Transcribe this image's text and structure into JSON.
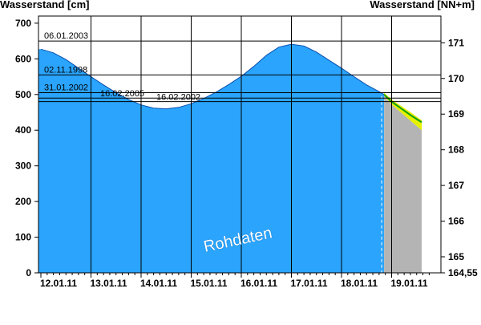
{
  "header": {
    "left_axis_title": "Wasserstand [cm]",
    "right_axis_title": "Wasserstand [NN+m]"
  },
  "watermark": "Rohdaten",
  "colors": {
    "area": "#2aa4fc",
    "forecast_area": "#b4b4b4",
    "forecast_band": "#e6f000",
    "forecast_line": "#10a010",
    "gridline": "#000000"
  },
  "chart_data": {
    "type": "area",
    "title": "",
    "xlabel": "",
    "ylabel": "Wasserstand [cm]",
    "y2label": "Wasserstand [NN+m]",
    "x_ticks": [
      "12.01.11",
      "13.01.11",
      "14.01.11",
      "15.01.11",
      "16.01.11",
      "17.01.11",
      "18.01.11",
      "19.01.11"
    ],
    "xlim_days": [
      -0.05,
      7.75
    ],
    "ylim": [
      0,
      720
    ],
    "y_ticks": [
      0,
      100,
      200,
      300,
      400,
      500,
      600,
      700
    ],
    "y2_ticks": [
      164.55,
      165,
      166,
      167,
      168,
      169,
      170,
      171
    ],
    "y2_tick_labels": [
      "164,55",
      "165",
      "166",
      "167",
      "168",
      "169",
      "170",
      "171"
    ],
    "y2_offset_m": 164.55,
    "series": [
      {
        "kind": "observed",
        "x_days": [
          0.0,
          0.25,
          0.5,
          0.75,
          1.0,
          1.25,
          1.5,
          1.75,
          2.0,
          2.25,
          2.5,
          2.75,
          3.0,
          3.25,
          3.5,
          3.75,
          4.0,
          4.25,
          4.5,
          4.75,
          5.0,
          5.25,
          5.5,
          5.75,
          6.0,
          6.25,
          6.5,
          6.75,
          6.85
        ],
        "values": [
          627,
          617,
          598,
          574,
          550,
          527,
          505,
          486,
          471,
          462,
          460,
          464,
          474,
          489,
          507,
          528,
          551,
          579,
          610,
          633,
          641,
          636,
          619,
          596,
          574,
          550,
          527,
          508,
          500
        ]
      },
      {
        "kind": "forecast",
        "x_days": [
          6.85,
          7.0,
          7.2,
          7.4,
          7.6
        ],
        "values": [
          500,
          480,
          460,
          440,
          422
        ],
        "band_upper": [
          505,
          486,
          467,
          448,
          428
        ],
        "band_lower": [
          497,
          472,
          448,
          424,
          400
        ]
      }
    ],
    "reference_lines": [
      {
        "label": "06.01.2003",
        "value": 650
      },
      {
        "label": "02.11.1998",
        "value": 555
      },
      {
        "label": "31.01.2002",
        "value": 505
      },
      {
        "label": "16.02.2005",
        "value": 490
      },
      {
        "label": "16.02.2002",
        "value": 480
      }
    ],
    "current_time_days": 6.85,
    "grid": "vertical at day boundaries"
  }
}
